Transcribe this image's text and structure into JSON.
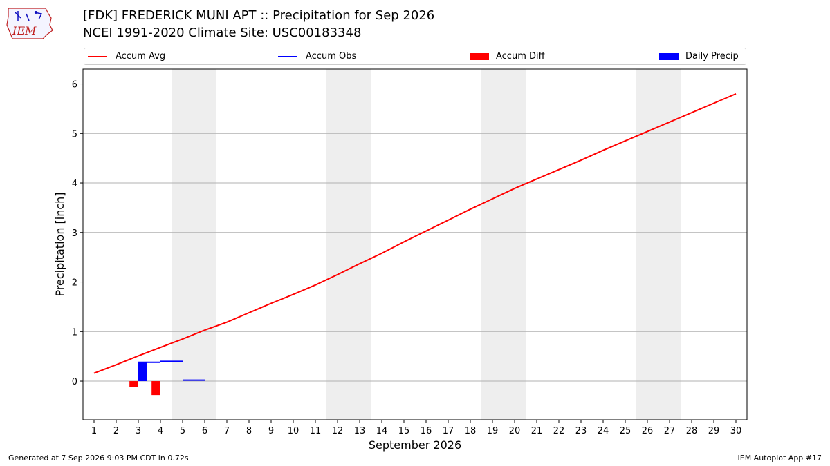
{
  "header": {
    "title_line1": "[FDK] FREDERICK MUNI APT :: Precipitation for Sep 2026",
    "title_line2": "NCEI 1991-2020 Climate Site: USC00183348",
    "logo_text": "IEM"
  },
  "legend": {
    "items": [
      {
        "label": "Accum Avg",
        "color": "#ff0000",
        "kind": "line"
      },
      {
        "label": "Accum Obs",
        "color": "#0000ff",
        "kind": "line"
      },
      {
        "label": "Accum Diff",
        "color": "#ff0000",
        "kind": "box"
      },
      {
        "label": "Daily Precip",
        "color": "#0000ff",
        "kind": "box"
      }
    ]
  },
  "chart_data": {
    "type": "bar",
    "title": "[FDK] FREDERICK MUNI APT :: Precipitation for Sep 2026",
    "subtitle": "NCEI 1991-2020 Climate Site: USC00183348",
    "xlabel": "September 2026",
    "ylabel": "Precipitation [inch]",
    "xlim": [
      0.5,
      30.5
    ],
    "ylim": [
      -0.78,
      6.3
    ],
    "yticks": [
      0,
      1,
      2,
      3,
      4,
      5,
      6
    ],
    "xticks": [
      1,
      2,
      3,
      4,
      5,
      6,
      7,
      8,
      9,
      10,
      11,
      12,
      13,
      14,
      15,
      16,
      17,
      18,
      19,
      20,
      21,
      22,
      23,
      24,
      25,
      26,
      27,
      28,
      29,
      30
    ],
    "grid": "horizontal",
    "weekend_bands": [
      [
        5,
        6
      ],
      [
        12,
        13
      ],
      [
        19,
        20
      ],
      [
        26,
        27
      ]
    ],
    "series": [
      {
        "name": "Accum Avg",
        "type": "line",
        "color": "#ff0000",
        "x": [
          1,
          2,
          3,
          4,
          5,
          6,
          7,
          8,
          9,
          10,
          11,
          12,
          13,
          14,
          15,
          16,
          17,
          18,
          19,
          20,
          21,
          22,
          23,
          24,
          25,
          26,
          27,
          28,
          29,
          30
        ],
        "values": [
          0.16,
          0.33,
          0.51,
          0.68,
          0.85,
          1.03,
          1.19,
          1.38,
          1.57,
          1.75,
          1.94,
          2.15,
          2.37,
          2.58,
          2.81,
          3.03,
          3.25,
          3.47,
          3.68,
          3.89,
          4.08,
          4.27,
          4.46,
          4.66,
          4.85,
          5.04,
          5.23,
          5.42,
          5.61,
          5.8
        ]
      },
      {
        "name": "Accum Obs",
        "type": "step",
        "color": "#0000ff",
        "x": [
          3,
          4,
          5
        ],
        "values": [
          0.38,
          0.4,
          0.02
        ]
      },
      {
        "name": "Accum Diff",
        "type": "bar",
        "color": "#ff0000",
        "offset": -0.2,
        "x": [
          3,
          4
        ],
        "values": [
          -0.12,
          -0.28
        ]
      },
      {
        "name": "Daily Precip",
        "type": "bar",
        "color": "#0000ff",
        "offset": 0.2,
        "x": [
          3
        ],
        "values": [
          0.38
        ]
      }
    ]
  },
  "footer": {
    "left": "Generated at 7 Sep 2026 9:03 PM CDT in 0.72s",
    "right": "IEM Autoplot App #17"
  }
}
